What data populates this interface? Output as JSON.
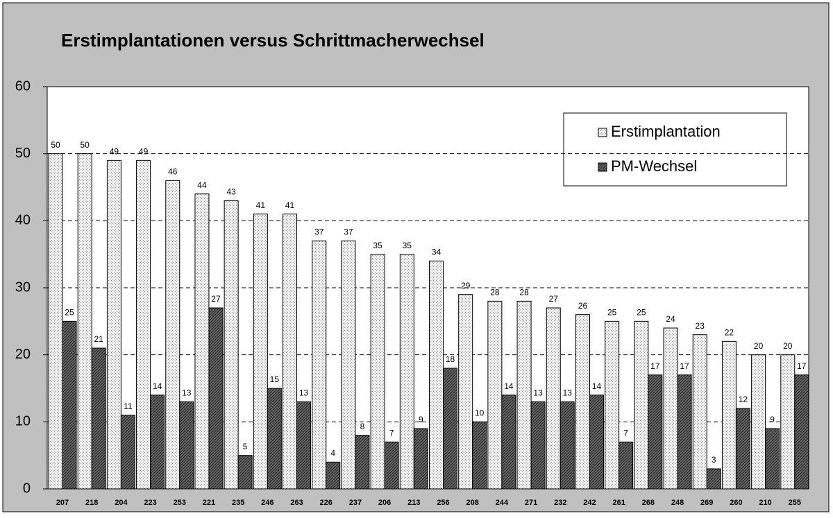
{
  "chart_data": {
    "type": "bar",
    "title": "Erstimplantationen versus Schrittmacherwechsel",
    "categories": [
      "207",
      "218",
      "204",
      "223",
      "253",
      "221",
      "235",
      "246",
      "263",
      "226",
      "237",
      "206",
      "213",
      "256",
      "208",
      "244",
      "271",
      "232",
      "242",
      "261",
      "268",
      "248",
      "269",
      "260",
      "210",
      "255"
    ],
    "series": [
      {
        "name": "Erstimplantation",
        "color": "#e6e6e6",
        "values": [
          50,
          50,
          49,
          49,
          46,
          44,
          43,
          41,
          41,
          37,
          37,
          35,
          35,
          34,
          29,
          28,
          28,
          27,
          26,
          25,
          25,
          24,
          23,
          22,
          20,
          20
        ]
      },
      {
        "name": "PM-Wechsel",
        "color": "#555555",
        "values": [
          25,
          21,
          11,
          14,
          13,
          27,
          5,
          15,
          13,
          4,
          8,
          7,
          9,
          18,
          10,
          14,
          13,
          13,
          14,
          7,
          17,
          17,
          3,
          12,
          9,
          17
        ]
      }
    ],
    "ylim": [
      0,
      60
    ],
    "yticks": [
      0,
      10,
      20,
      30,
      40,
      50,
      60
    ],
    "grid": true,
    "legend": "upper right"
  }
}
